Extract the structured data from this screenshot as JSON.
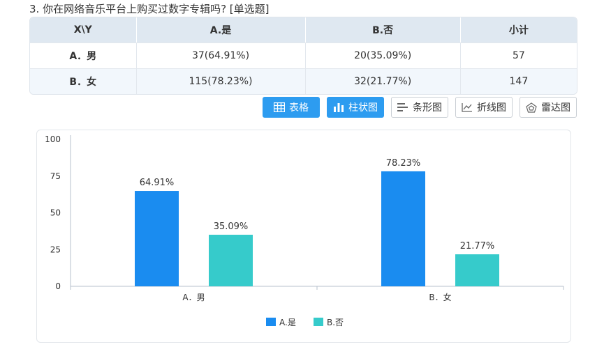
{
  "question": "3. 你在网络音乐平台上购买过数字专辑吗? [单选题]",
  "table": {
    "headers": [
      "X\\Y",
      "A.是",
      "B.否",
      "小计"
    ],
    "rows": [
      {
        "label": "A．男",
        "a": "37(64.91%)",
        "b": "20(35.09%)",
        "total": "57"
      },
      {
        "label": "B．女",
        "a": "115(78.23%)",
        "b": "32(21.77%)",
        "total": "147"
      }
    ]
  },
  "buttons": {
    "table": "表格",
    "bar": "柱状图",
    "hbar": "条形图",
    "line": "折线图",
    "radar": "雷达图"
  },
  "colors": {
    "accent": "#2d9cf0",
    "series_a": "#1a8cf0",
    "series_b": "#36cbcb"
  },
  "chart_data": {
    "type": "bar",
    "categories": [
      "A．男",
      "B．女"
    ],
    "series": [
      {
        "name": "A.是",
        "values": [
          64.91,
          78.23
        ],
        "labels": [
          "64.91%",
          "78.23%"
        ]
      },
      {
        "name": "B.否",
        "values": [
          35.09,
          21.77
        ],
        "labels": [
          "35.09%",
          "21.77%"
        ]
      }
    ],
    "ylim": [
      0,
      100
    ],
    "yticks": [
      "0",
      "25",
      "50",
      "75",
      "100"
    ],
    "legend": "bottom-center",
    "grid": false
  }
}
